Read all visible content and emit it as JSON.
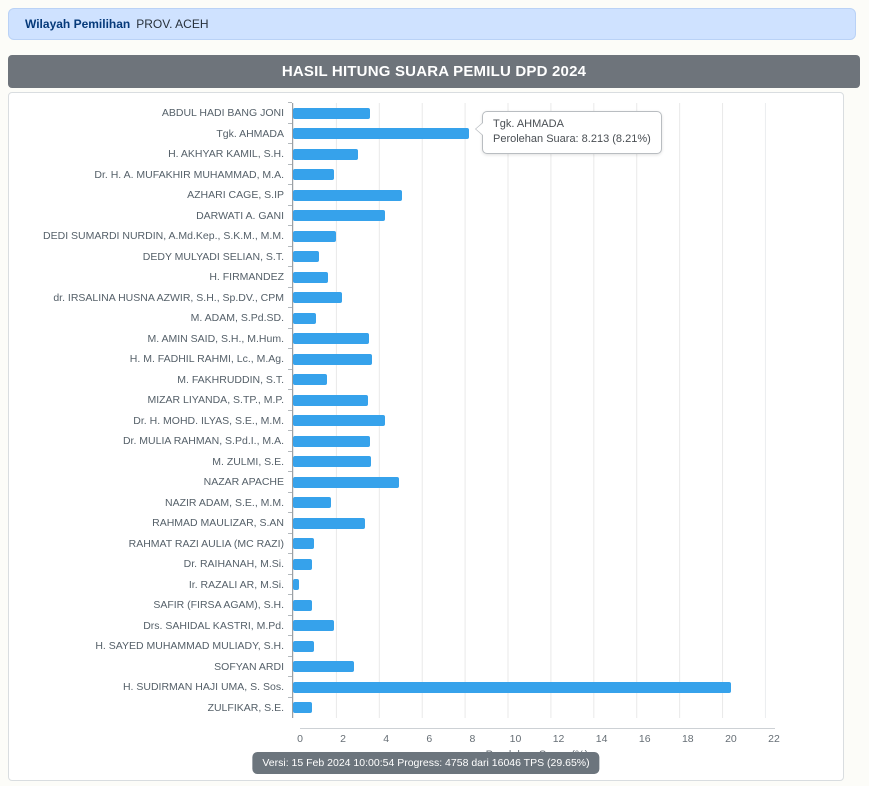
{
  "banner": {
    "label": "Wilayah Pemilihan",
    "value": "PROV. ACEH"
  },
  "title": "HASIL HITUNG SUARA PEMILU DPD 2024",
  "tooltip": {
    "name": "Tgk. AHMADA",
    "value_line": "Perolehan Suara: 8.213 (8.21%)"
  },
  "footer": {
    "text": "Versi: 15 Feb 2024 10:00:54 Progress: 4758 dari 16046 TPS (29.65%)"
  },
  "colors": {
    "bar": "#36a2eb",
    "banner_bg": "#cfe2ff",
    "banner_text": "#063a7a",
    "title_bar_bg": "#6e747b",
    "pill_bg": "#6c757d",
    "gridline": "#e6e8ea"
  },
  "chart_data": {
    "type": "bar",
    "orientation": "horizontal",
    "title": "HASIL HITUNG SUARA PEMILU DPD 2024",
    "xlabel": "Perolehan Suara (%)",
    "xlim": [
      0,
      22
    ],
    "xticks": [
      0,
      2,
      4,
      6,
      8,
      10,
      12,
      14,
      16,
      18,
      20,
      22
    ],
    "grid": true,
    "categories": [
      "ABDUL HADI BANG JONI",
      "Tgk. AHMADA",
      "H. AKHYAR KAMIL, S.H.",
      "Dr. H. A. MUFAKHIR MUHAMMAD, M.A.",
      "AZHARI CAGE, S.IP",
      "DARWATI A. GANI",
      "DEDI SUMARDI NURDIN, A.Md.Kep., S.K.M., M.M.",
      "DEDY MULYADI SELIAN, S.T.",
      "H. FIRMANDEZ",
      "dr. IRSALINA HUSNA AZWIR, S.H., Sp.DV., CPM",
      "M. ADAM, S.Pd.SD.",
      "M. AMIN SAID, S.H., M.Hum.",
      "H. M. FADHIL RAHMI, Lc., M.Ag.",
      "M. FAKHRUDDIN, S.T.",
      "MIZAR LIYANDA, S.TP., M.P.",
      "Dr. H. MOHD. ILYAS, S.E., M.M.",
      "Dr. MULIA RAHMAN, S.Pd.I., M.A.",
      "M. ZULMI, S.E.",
      "NAZAR APACHE",
      "NAZIR ADAM, S.E., M.M.",
      "RAHMAD MAULIZAR, S.AN",
      "RAHMAT RAZI AULIA (MC RAZI)",
      "Dr. RAIHANAH, M.Si.",
      "Ir. RAZALI AR, M.Si.",
      "SAFIR (FIRSA AGAM), S.H.",
      "Drs. SAHIDAL KASTRI, M.Pd.",
      "H. SAYED MUHAMMAD MULIADY, S.H.",
      "SOFYAN ARDI",
      "H. SUDIRMAN HAJI UMA, S. Sos.",
      "ZULFIKAR, S.E."
    ],
    "values": [
      3.6,
      8.21,
      3.05,
      1.9,
      5.1,
      4.3,
      2.0,
      1.2,
      1.65,
      2.3,
      1.05,
      3.55,
      3.7,
      1.6,
      3.5,
      4.3,
      3.6,
      3.65,
      4.95,
      1.75,
      3.35,
      1.0,
      0.9,
      0.3,
      0.9,
      1.9,
      1.0,
      2.85,
      20.4,
      0.9
    ],
    "highlighted_bar": {
      "category": "Tgk. AHMADA",
      "votes": "8.213",
      "percent": "8.21%"
    }
  }
}
